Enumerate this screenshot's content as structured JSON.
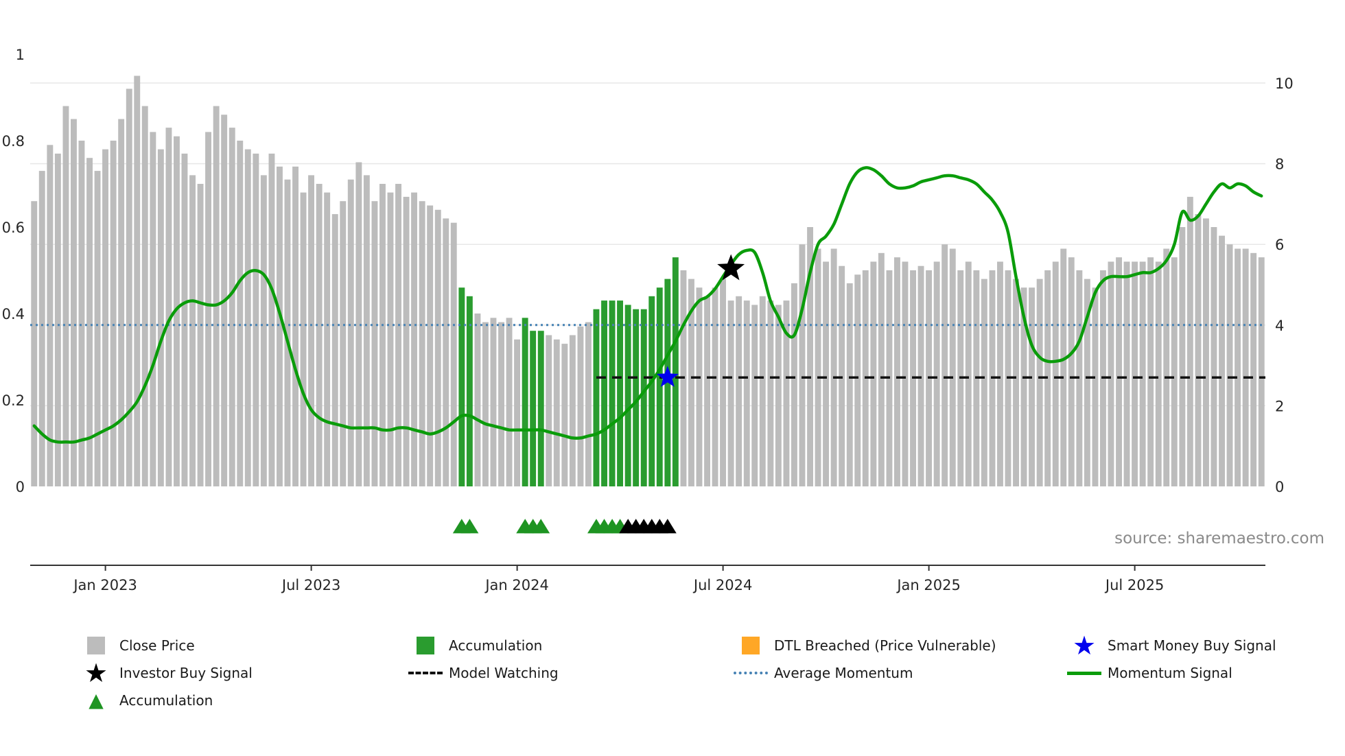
{
  "source_note": "source: sharemaestro.com",
  "glyphs": {
    "star": "★",
    "triangle": "▲"
  },
  "chart_data": {
    "type": "bar",
    "title": "",
    "x_tick_labels": [
      "Jan 2023",
      "Jul 2023",
      "Jan 2024",
      "Jul 2024",
      "Jan 2025",
      "Jul 2025"
    ],
    "x_tick_indices": [
      9,
      35,
      61,
      87,
      113,
      139
    ],
    "left_axis": {
      "ticks": [
        "0",
        "0.2",
        "0.4",
        "0.6",
        "0.8",
        "1"
      ],
      "tick_values": [
        0,
        0.2,
        0.4,
        0.6,
        0.8,
        1
      ],
      "range": [
        0,
        1
      ]
    },
    "right_axis": {
      "ticks": [
        "0",
        "2",
        "4",
        "6",
        "8",
        "10"
      ],
      "tick_values": [
        0,
        2,
        4,
        6,
        8,
        10
      ],
      "range": [
        0,
        10
      ]
    },
    "grid": "horizontal",
    "series": [
      {
        "name": "Close Price",
        "type": "bar",
        "axis": "left",
        "color": "#bcbcbc",
        "values": [
          0.66,
          0.73,
          0.79,
          0.77,
          0.88,
          0.85,
          0.8,
          0.76,
          0.73,
          0.78,
          0.8,
          0.85,
          0.92,
          0.95,
          0.88,
          0.82,
          0.78,
          0.83,
          0.81,
          0.77,
          0.72,
          0.7,
          0.82,
          0.88,
          0.86,
          0.83,
          0.8,
          0.78,
          0.77,
          0.72,
          0.77,
          0.74,
          0.71,
          0.74,
          0.68,
          0.72,
          0.7,
          0.68,
          0.63,
          0.66,
          0.71,
          0.75,
          0.72,
          0.66,
          0.7,
          0.68,
          0.7,
          0.67,
          0.68,
          0.66,
          0.65,
          0.64,
          0.62,
          0.61,
          0.46,
          0.44,
          0.4,
          0.38,
          0.39,
          0.38,
          0.39,
          0.34,
          0.39,
          0.36,
          0.36,
          0.35,
          0.34,
          0.33,
          0.35,
          0.37,
          0.38,
          0.41,
          0.43,
          0.43,
          0.43,
          0.42,
          0.41,
          0.41,
          0.44,
          0.46,
          0.48,
          0.53,
          0.5,
          0.48,
          0.46,
          0.44,
          0.46,
          0.48,
          0.43,
          0.44,
          0.43,
          0.42,
          0.44,
          0.43,
          0.42,
          0.43,
          0.47,
          0.56,
          0.6,
          0.55,
          0.52,
          0.55,
          0.51,
          0.47,
          0.49,
          0.5,
          0.52,
          0.54,
          0.5,
          0.53,
          0.52,
          0.5,
          0.51,
          0.5,
          0.52,
          0.56,
          0.55,
          0.5,
          0.52,
          0.5,
          0.48,
          0.5,
          0.52,
          0.5,
          0.48,
          0.46,
          0.46,
          0.48,
          0.5,
          0.52,
          0.55,
          0.53,
          0.5,
          0.48,
          0.46,
          0.5,
          0.52,
          0.53,
          0.52,
          0.52,
          0.52,
          0.53,
          0.52,
          0.55,
          0.53,
          0.6,
          0.67,
          0.63,
          0.62,
          0.6,
          0.58,
          0.56,
          0.55,
          0.55,
          0.54,
          0.53
        ]
      },
      {
        "name": "Momentum Signal",
        "type": "line",
        "axis": "right",
        "color": "#0a9c0a",
        "width": 4.5,
        "values": [
          1.5,
          1.3,
          1.15,
          1.1,
          1.1,
          1.1,
          1.15,
          1.2,
          1.3,
          1.4,
          1.5,
          1.65,
          1.85,
          2.1,
          2.5,
          3.0,
          3.6,
          4.1,
          4.4,
          4.55,
          4.6,
          4.55,
          4.5,
          4.5,
          4.6,
          4.8,
          5.1,
          5.3,
          5.35,
          5.25,
          4.9,
          4.3,
          3.6,
          2.9,
          2.3,
          1.9,
          1.7,
          1.6,
          1.55,
          1.5,
          1.45,
          1.45,
          1.45,
          1.45,
          1.4,
          1.4,
          1.45,
          1.45,
          1.4,
          1.35,
          1.3,
          1.35,
          1.45,
          1.6,
          1.75,
          1.75,
          1.65,
          1.55,
          1.5,
          1.45,
          1.4,
          1.4,
          1.4,
          1.4,
          1.4,
          1.35,
          1.3,
          1.25,
          1.2,
          1.2,
          1.25,
          1.3,
          1.4,
          1.55,
          1.7,
          1.9,
          2.1,
          2.35,
          2.6,
          2.9,
          3.25,
          3.6,
          4.0,
          4.35,
          4.6,
          4.7,
          4.9,
          5.2,
          5.5,
          5.75,
          5.85,
          5.8,
          5.3,
          4.6,
          4.2,
          3.8,
          3.75,
          4.4,
          5.3,
          6.0,
          6.2,
          6.5,
          7.0,
          7.5,
          7.8,
          7.9,
          7.85,
          7.7,
          7.5,
          7.4,
          7.4,
          7.45,
          7.55,
          7.6,
          7.65,
          7.7,
          7.7,
          7.65,
          7.6,
          7.5,
          7.3,
          7.1,
          6.8,
          6.3,
          5.2,
          4.2,
          3.5,
          3.2,
          3.1,
          3.1,
          3.15,
          3.3,
          3.6,
          4.2,
          4.8,
          5.1,
          5.2,
          5.2,
          5.2,
          5.25,
          5.3,
          5.3,
          5.4,
          5.6,
          6.0,
          6.8,
          6.6,
          6.7,
          7.0,
          7.3,
          7.5,
          7.4,
          7.5,
          7.45,
          7.3,
          7.2
        ]
      },
      {
        "name": "Average Momentum",
        "type": "hline",
        "axis": "right",
        "style": "dotted",
        "color": "#4682b4",
        "value": 4.0
      },
      {
        "name": "Model Watching",
        "type": "hline-segment",
        "axis": "right",
        "style": "dashed",
        "color": "#111111",
        "value": 2.7,
        "start_index": 71
      }
    ],
    "accumulation": {
      "color": "#2a9c2f",
      "bar_indices": [
        54,
        55,
        62,
        63,
        64,
        71,
        72,
        73,
        74,
        75,
        76,
        77,
        78,
        79,
        80,
        81
      ]
    },
    "markers": {
      "accumulation_triangles": {
        "color": "#1e9422",
        "indices": [
          54,
          55,
          62,
          63,
          64,
          71,
          72,
          73,
          74
        ]
      },
      "black_triangles": {
        "color": "#000000",
        "indices": [
          75,
          76,
          77,
          78,
          79,
          80
        ]
      },
      "investor_buy_signal": {
        "marker": "star",
        "color": "#000000",
        "index": 88,
        "value": 5.4
      },
      "smart_money_buy_signal": {
        "marker": "star",
        "color": "#0000ee",
        "index": 80,
        "value": 2.7
      }
    }
  },
  "legend": {
    "columns": [
      {
        "items": [
          {
            "label": "Close Price",
            "swatch": "square",
            "color": "#bcbcbc"
          },
          {
            "label": "Investor Buy Signal",
            "swatch": "star",
            "color": "#000000"
          },
          {
            "label": "Accumulation",
            "swatch": "triangle",
            "color": "#1e9422"
          }
        ]
      },
      {
        "items": [
          {
            "label": "Accumulation",
            "swatch": "square",
            "color": "#2a9c2f"
          },
          {
            "label": "Model Watching",
            "swatch": "dashed-line",
            "color": "#111111"
          }
        ]
      },
      {
        "items": [
          {
            "label": "DTL Breached (Price Vulnerable)",
            "swatch": "square",
            "color": "#ffa726"
          },
          {
            "label": "Average Momentum",
            "swatch": "dotted-line",
            "color": "#4682b4"
          }
        ]
      },
      {
        "items": [
          {
            "label": "Smart Money Buy Signal",
            "swatch": "star",
            "color": "#0000ee"
          },
          {
            "label": "Momentum Signal",
            "swatch": "solid-line",
            "color": "#0a9c0a"
          }
        ]
      }
    ]
  }
}
